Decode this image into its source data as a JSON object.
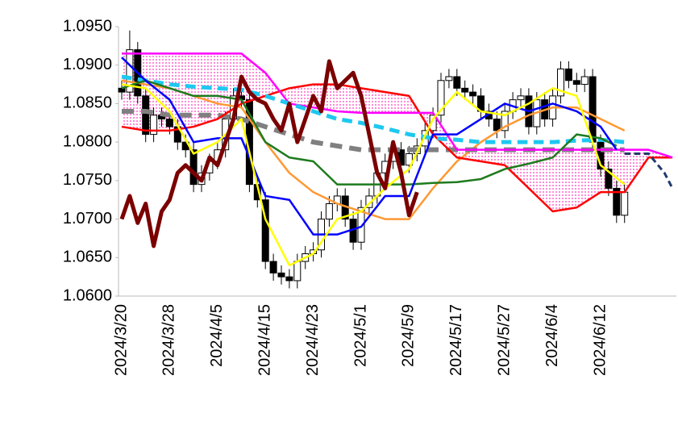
{
  "chart_data": {
    "type": "candlestick",
    "categories": [
      "2024/3/20",
      null,
      null,
      null,
      null,
      null,
      "2024/3/28",
      null,
      null,
      null,
      null,
      null,
      "2024/4/5",
      null,
      null,
      null,
      null,
      null,
      "2024/4/15",
      null,
      null,
      null,
      null,
      null,
      "2024/4/23",
      null,
      null,
      null,
      null,
      null,
      "2024/5/1",
      null,
      null,
      null,
      null,
      null,
      "2024/5/9",
      null,
      null,
      null,
      null,
      null,
      "2024/5/17",
      null,
      null,
      null,
      null,
      null,
      "2024/5/27",
      null,
      null,
      null,
      null,
      null,
      "2024/6/4",
      null,
      null,
      null,
      null,
      null,
      "2024/6/12",
      null,
      null,
      null,
      null,
      null,
      null,
      null,
      null,
      null
    ],
    "ylim": [
      1.06,
      1.095
    ],
    "yticks": [
      {
        "value": 1.06,
        "label": "1.0600"
      },
      {
        "value": 1.065,
        "label": "1.0650"
      },
      {
        "value": 1.07,
        "label": "1.0700"
      },
      {
        "value": 1.075,
        "label": "1.0750"
      },
      {
        "value": 1.08,
        "label": "1.0800"
      },
      {
        "value": 1.085,
        "label": "1.0850"
      },
      {
        "value": 1.09,
        "label": "1.0900"
      },
      {
        "value": 1.095,
        "label": "1.0950"
      }
    ],
    "candles": {
      "open": [
        1.087,
        1.0865,
        1.092,
        1.086,
        1.081,
        1.0835,
        1.083,
        1.082,
        1.08,
        1.079,
        1.0745,
        1.076,
        1.0775,
        1.079,
        1.083,
        1.086,
        1.0855,
        1.0745,
        1.0725,
        1.0645,
        1.063,
        1.0625,
        1.062,
        1.0645,
        1.0655,
        1.066,
        1.07,
        1.072,
        1.073,
        1.07,
        1.067,
        1.0715,
        1.073,
        1.076,
        1.0775,
        1.079,
        1.077,
        1.0785,
        1.0795,
        1.0815,
        1.0835,
        1.088,
        1.0885,
        1.087,
        1.0865,
        1.086,
        1.084,
        1.083,
        1.0815,
        1.084,
        1.0855,
        1.086,
        1.082,
        1.0855,
        1.083,
        1.086,
        1.0895,
        1.088,
        1.0875,
        1.0885,
        1.08,
        1.0765,
        1.074,
        1.0705
      ],
      "high": [
        1.088,
        1.0945,
        1.093,
        1.087,
        1.0845,
        1.0845,
        1.084,
        1.083,
        1.081,
        1.08,
        1.077,
        1.0785,
        1.08,
        1.084,
        1.087,
        1.087,
        1.0865,
        1.0755,
        1.0735,
        1.0655,
        1.064,
        1.0635,
        1.0655,
        1.0665,
        1.067,
        1.071,
        1.073,
        1.074,
        1.074,
        1.071,
        1.0725,
        1.074,
        1.077,
        1.0785,
        1.08,
        1.08,
        1.0795,
        1.0805,
        1.0825,
        1.0845,
        1.089,
        1.0895,
        1.0895,
        1.088,
        1.0875,
        1.087,
        1.085,
        1.084,
        1.085,
        1.0865,
        1.087,
        1.087,
        1.0865,
        1.0865,
        1.087,
        1.0905,
        1.0905,
        1.089,
        1.0895,
        1.0895,
        1.081,
        1.0775,
        1.075,
        1.0745
      ],
      "low": [
        1.0855,
        1.0855,
        1.085,
        1.08,
        1.08,
        1.082,
        1.081,
        1.079,
        1.078,
        1.0735,
        1.0735,
        1.075,
        1.0765,
        1.078,
        1.082,
        1.0845,
        1.0735,
        1.0715,
        1.0635,
        1.062,
        1.0615,
        1.061,
        1.061,
        1.0635,
        1.0645,
        1.065,
        1.069,
        1.071,
        1.069,
        1.066,
        1.066,
        1.0705,
        1.072,
        1.075,
        1.0765,
        1.076,
        1.076,
        1.0775,
        1.0785,
        1.0805,
        1.0825,
        1.087,
        1.086,
        1.0855,
        1.085,
        1.083,
        1.082,
        1.0805,
        1.0805,
        1.083,
        1.0845,
        1.081,
        1.081,
        1.082,
        1.082,
        1.085,
        1.087,
        1.0865,
        1.0865,
        1.079,
        1.0755,
        1.073,
        1.0695,
        1.0695
      ],
      "close": [
        1.0865,
        1.092,
        1.086,
        1.081,
        1.0835,
        1.083,
        1.082,
        1.08,
        1.079,
        1.0745,
        1.076,
        1.0775,
        1.079,
        1.083,
        1.086,
        1.0855,
        1.0745,
        1.0725,
        1.0645,
        1.063,
        1.0625,
        1.062,
        1.0645,
        1.0655,
        1.066,
        1.07,
        1.072,
        1.073,
        1.07,
        1.067,
        1.0715,
        1.073,
        1.076,
        1.0775,
        1.079,
        1.077,
        1.0785,
        1.0795,
        1.0815,
        1.0835,
        1.088,
        1.0885,
        1.087,
        1.0865,
        1.086,
        1.084,
        1.083,
        1.0815,
        1.084,
        1.0855,
        1.086,
        1.082,
        1.0855,
        1.083,
        1.086,
        1.0895,
        1.088,
        1.0875,
        1.0885,
        1.08,
        1.0765,
        1.074,
        1.0705,
        1.0735
      ],
      "up_color": "#ffffff",
      "down_color": "#000000"
    },
    "cloud_color": "#ff66cc",
    "cloud": [
      2,
      3
    ],
    "series": [
      {
        "color": "#ff9933",
        "width": 2.5,
        "dash": false,
        "x": [
          0,
          3,
          6,
          9,
          12,
          15,
          18,
          21,
          24,
          27,
          30,
          33,
          36,
          39,
          42,
          45,
          48,
          51,
          54,
          57,
          60,
          63
        ],
        "values": [
          1.088,
          1.0875,
          1.087,
          1.086,
          1.085,
          1.0845,
          1.08,
          1.076,
          1.0735,
          1.072,
          1.071,
          1.07,
          1.07,
          1.074,
          1.0775,
          1.08,
          1.082,
          1.0835,
          1.0845,
          1.0845,
          1.083,
          1.0815
        ]
      },
      {
        "color": "#808080",
        "width": 6,
        "dash": true,
        "x": [
          0,
          3,
          6,
          9,
          12,
          15,
          18,
          21,
          24,
          27,
          30,
          33,
          36,
          39,
          42,
          45,
          48,
          51,
          54,
          57,
          60,
          63
        ],
        "values": [
          1.084,
          1.084,
          1.0835,
          1.0835,
          1.0835,
          1.083,
          1.082,
          1.081,
          1.08,
          1.0795,
          1.079,
          1.079,
          1.079,
          1.079,
          1.079,
          1.079,
          1.079,
          1.079,
          1.079,
          1.079,
          1.079,
          1.079
        ]
      },
      {
        "color": "#ff0000",
        "width": 2.5,
        "dash": false,
        "x": [
          0,
          3,
          6,
          9,
          12,
          15,
          18,
          21,
          24,
          27,
          30,
          33,
          36,
          39,
          42,
          45,
          48,
          51,
          54,
          57,
          60,
          63,
          66,
          69
        ],
        "values": [
          1.082,
          1.0815,
          1.0815,
          1.082,
          1.083,
          1.085,
          1.086,
          1.087,
          1.0875,
          1.0875,
          1.087,
          1.0865,
          1.086,
          1.081,
          1.078,
          1.0775,
          1.077,
          1.074,
          1.071,
          1.0715,
          1.0735,
          1.0735,
          1.078,
          1.078
        ]
      },
      {
        "color": "#ff00ff",
        "width": 2.5,
        "dash": false,
        "x": [
          0,
          3,
          6,
          9,
          12,
          15,
          18,
          21,
          24,
          27,
          30,
          33,
          36,
          39,
          42,
          45,
          48,
          51,
          54,
          57,
          60,
          63,
          66,
          69
        ],
        "values": [
          1.0915,
          1.0915,
          1.0915,
          1.0915,
          1.0915,
          1.0915,
          1.089,
          1.085,
          1.0845,
          1.084,
          1.0838,
          1.0838,
          1.0838,
          1.0838,
          1.079,
          1.079,
          1.079,
          1.079,
          1.079,
          1.079,
          1.079,
          1.079,
          1.079,
          1.078
        ]
      },
      {
        "color": "#1ec8f0",
        "width": 5,
        "dash": true,
        "x": [
          0,
          3,
          6,
          9,
          12,
          15,
          18,
          21,
          24,
          27,
          30,
          33,
          36,
          39,
          42,
          45,
          48,
          51,
          54,
          57,
          60,
          63
        ],
        "values": [
          1.0885,
          1.088,
          1.0875,
          1.0872,
          1.087,
          1.0868,
          1.086,
          1.085,
          1.084,
          1.083,
          1.0825,
          1.0818,
          1.081,
          1.0805,
          1.0803,
          1.08,
          1.08,
          1.08,
          1.08,
          1.0802,
          1.0803,
          1.08
        ]
      },
      {
        "color": "#1e7b1e",
        "width": 2.5,
        "dash": false,
        "x": [
          0,
          3,
          6,
          9,
          12,
          15,
          18,
          21,
          24,
          27,
          30,
          33,
          36,
          39,
          42,
          45,
          48,
          51,
          54,
          57,
          60,
          62
        ],
        "values": [
          1.087,
          1.088,
          1.087,
          1.086,
          1.086,
          1.0855,
          1.08,
          1.078,
          1.0775,
          1.0745,
          1.0745,
          1.0745,
          1.0745,
          1.0747,
          1.0748,
          1.0752,
          1.0765,
          1.0772,
          1.078,
          1.081,
          1.0805,
          1.0795
        ]
      },
      {
        "color": "#0000ff",
        "width": 2.5,
        "dash": false,
        "x": [
          0,
          3,
          6,
          9,
          12,
          15,
          18,
          21,
          24,
          27,
          30,
          33,
          36,
          39,
          42,
          45,
          48,
          51,
          54,
          57,
          60,
          62
        ],
        "values": [
          1.091,
          1.088,
          1.0855,
          1.08,
          1.0805,
          1.0805,
          1.073,
          1.0725,
          1.068,
          1.068,
          1.069,
          1.073,
          1.073,
          1.081,
          1.081,
          1.083,
          1.085,
          1.084,
          1.085,
          1.084,
          1.082,
          1.079
        ]
      },
      {
        "color": "#ffff00",
        "width": 2.5,
        "dash": false,
        "x": [
          0,
          3,
          6,
          9,
          12,
          15,
          18,
          21,
          24,
          27,
          30,
          33,
          36,
          39,
          42,
          45,
          48,
          51,
          54,
          57,
          60,
          63
        ],
        "values": [
          1.0875,
          1.087,
          1.084,
          1.0785,
          1.08,
          1.083,
          1.07,
          1.064,
          1.0655,
          1.07,
          1.071,
          1.074,
          1.0765,
          1.083,
          1.0865,
          1.084,
          1.0835,
          1.085,
          1.087,
          1.086,
          1.077,
          1.0745
        ]
      },
      {
        "color": "#7b0000",
        "width": 5,
        "dash": false,
        "x": [
          0,
          1,
          2,
          3,
          4,
          5,
          6,
          7,
          8,
          9,
          10,
          11,
          12,
          13,
          14,
          15,
          16,
          17,
          18,
          19,
          20,
          21,
          22,
          23,
          24,
          25,
          26,
          27,
          28,
          29,
          30,
          31,
          32,
          33,
          34,
          35,
          36,
          37
        ],
        "values": [
          1.07,
          1.073,
          1.0695,
          1.072,
          1.0665,
          1.071,
          1.0725,
          1.076,
          1.077,
          1.076,
          1.075,
          1.078,
          1.077,
          1.08,
          1.083,
          1.0885,
          1.0865,
          1.0855,
          1.085,
          1.083,
          1.0815,
          1.085,
          1.08,
          1.083,
          1.086,
          1.084,
          1.0905,
          1.087,
          1.088,
          1.089,
          1.086,
          1.081,
          1.076,
          1.074,
          1.08,
          1.076,
          1.0705,
          1.0735
        ]
      },
      {
        "color": "#1f3a6e",
        "width": 3,
        "dash": true,
        "x": [
          63,
          66,
          68,
          69
        ],
        "values": [
          1.0785,
          1.0785,
          1.076,
          1.074
        ]
      }
    ]
  }
}
